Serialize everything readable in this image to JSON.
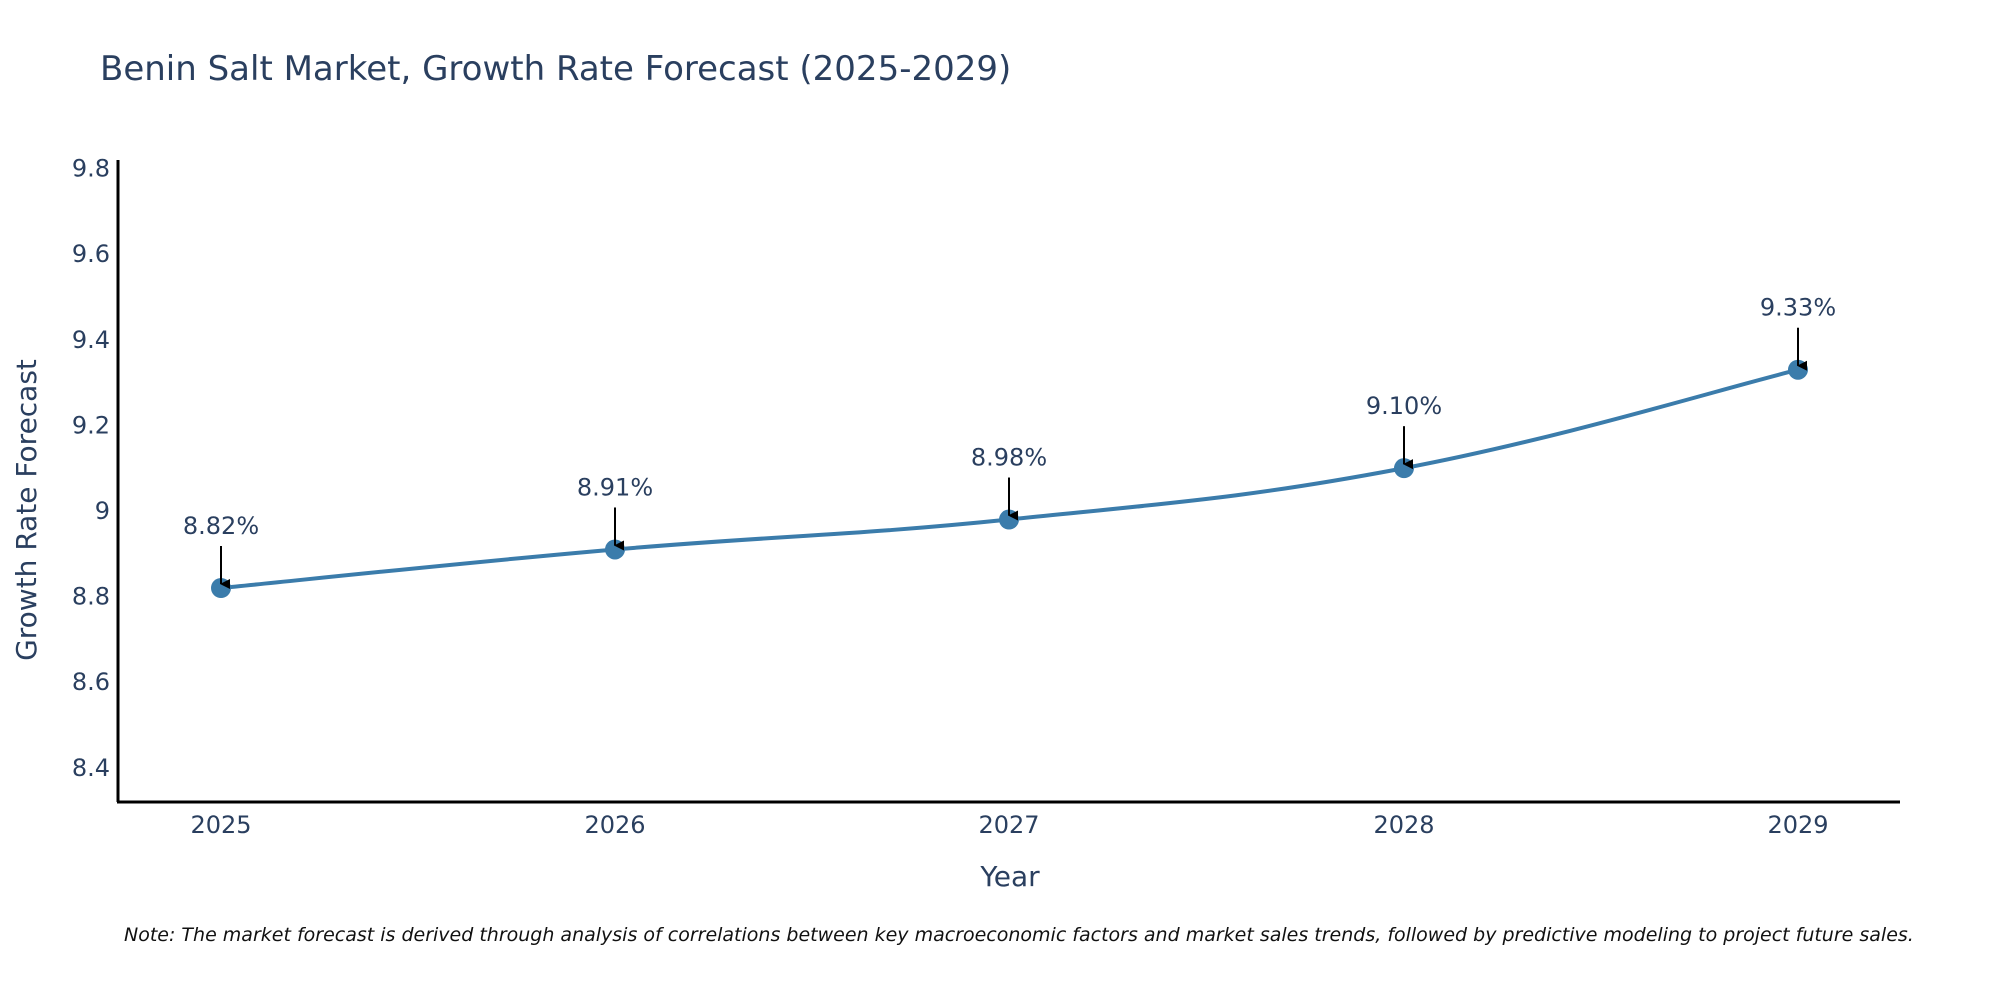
{
  "chart_data": {
    "type": "line",
    "title": "Benin Salt Market, Growth Rate Forecast (2025-2029)",
    "xlabel": "Year",
    "ylabel": "Growth Rate Forecast",
    "categories": [
      "2025",
      "2026",
      "2027",
      "2028",
      "2029"
    ],
    "values": [
      8.82,
      8.91,
      8.98,
      9.1,
      9.33
    ],
    "point_labels": [
      "8.82%",
      "8.91%",
      "8.98%",
      "9.10%",
      "9.33%"
    ],
    "y_ticks": [
      "8.4",
      "8.6",
      "8.8",
      "9",
      "9.2",
      "9.4",
      "9.6",
      "9.8"
    ],
    "y_tick_values": [
      8.4,
      8.6,
      8.8,
      9.0,
      9.2,
      9.4,
      9.6,
      9.8
    ],
    "ylim": [
      8.32,
      9.82
    ],
    "grid": false,
    "legend": "none",
    "line_color": "#3b7cab",
    "marker_color": "#3b7cab",
    "arrow_color": "#000000",
    "note": "Note: The market forecast is derived through analysis of correlations between key macroeconomic factors and market sales trends, followed by predictive modeling to project future sales."
  }
}
